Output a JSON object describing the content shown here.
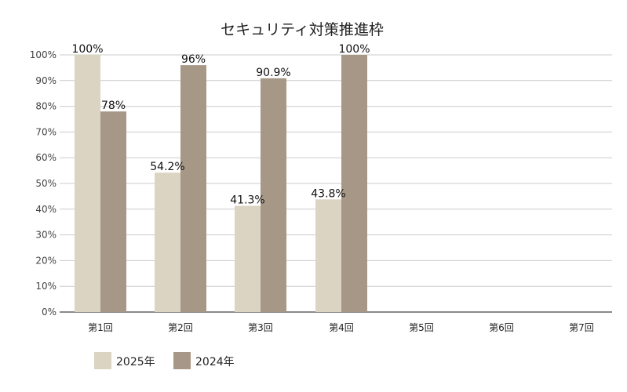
{
  "chart_data": {
    "type": "bar",
    "title": "セキュリティ対策推進枠",
    "xlabel": "",
    "ylabel": "",
    "categories": [
      "第1回",
      "第2回",
      "第3回",
      "第4回",
      "第5回",
      "第6回",
      "第7回"
    ],
    "series": [
      {
        "name": "2025年",
        "color": "#dbd4c3",
        "values": [
          100,
          54.2,
          41.3,
          43.8,
          null,
          null,
          null
        ],
        "labels": [
          "100%",
          "54.2%",
          "41.3%",
          "43.8%",
          "",
          "",
          ""
        ]
      },
      {
        "name": "2024年",
        "color": "#a79786",
        "values": [
          78,
          96,
          90.9,
          100,
          null,
          null,
          null
        ],
        "labels": [
          "78%",
          "96%",
          "90.9%",
          "100%",
          "",
          "",
          ""
        ]
      }
    ],
    "ylim": [
      0,
      100
    ],
    "yticks": [
      0,
      10,
      20,
      30,
      40,
      50,
      60,
      70,
      80,
      90,
      100
    ],
    "ytick_labels": [
      "0%",
      "10%",
      "20%",
      "30%",
      "40%",
      "50%",
      "60%",
      "70%",
      "80%",
      "90%",
      "100%"
    ],
    "grid": true,
    "legend_position": "bottom-left",
    "colors": {
      "gridline": "#cccccc",
      "axis": "#444444"
    }
  }
}
